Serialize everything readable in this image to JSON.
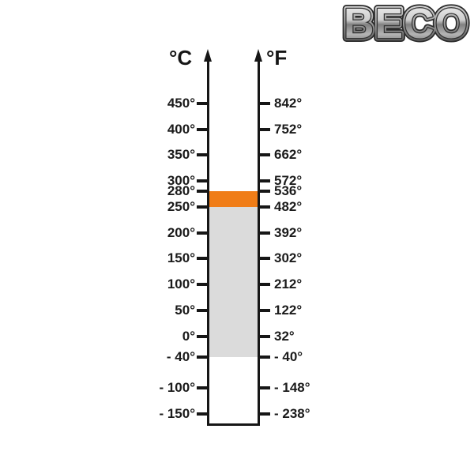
{
  "logo": {
    "text": "BECO"
  },
  "scale": {
    "celsius_header": "°C",
    "fahrenheit_header": "°F",
    "ticks": [
      {
        "value": 450,
        "c": "450°",
        "f": "842°"
      },
      {
        "value": 400,
        "c": "400°",
        "f": "752°"
      },
      {
        "value": 350,
        "c": "350°",
        "f": "662°"
      },
      {
        "value": 300,
        "c": "300°",
        "f": "572°"
      },
      {
        "value": 280,
        "c": "280°",
        "f": "536°"
      },
      {
        "value": 250,
        "c": "250°",
        "f": "482°"
      },
      {
        "value": 200,
        "c": "200°",
        "f": "392°"
      },
      {
        "value": 150,
        "c": "150°",
        "f": "302°"
      },
      {
        "value": 100,
        "c": "100°",
        "f": "212°"
      },
      {
        "value": 50,
        "c": "50°",
        "f": "122°"
      },
      {
        "value": 0,
        "c": "0°",
        "f": "32°"
      },
      {
        "value": -40,
        "c": "- 40°",
        "f": "- 40°"
      },
      {
        "value": -100,
        "c": "- 100°",
        "f": "- 148°"
      },
      {
        "value": -150,
        "c": "- 150°",
        "f": "- 238°"
      }
    ],
    "bands": [
      {
        "name": "peak-temperature-band",
        "from_c": 280,
        "to_c": 250,
        "color": "#F07D17"
      },
      {
        "name": "standard-temperature-band",
        "from_c": 250,
        "to_c": -40,
        "color": "#DBDBDB"
      }
    ]
  },
  "colors": {
    "axis": "#161616",
    "peak_orange": "#F07D17",
    "standard_gray": "#DBDBDB",
    "background": "#FFFFFF"
  },
  "chart_data": {
    "type": "table",
    "title": "Dual temperature scale °C / °F with highlighted operating ranges",
    "columns": [
      "°C",
      "°F"
    ],
    "rows": [
      [
        "450°",
        "842°"
      ],
      [
        "400°",
        "752°"
      ],
      [
        "350°",
        "662°"
      ],
      [
        "300°",
        "572°"
      ],
      [
        "280°",
        "536°"
      ],
      [
        "250°",
        "482°"
      ],
      [
        "200°",
        "392°"
      ],
      [
        "150°",
        "302°"
      ],
      [
        "100°",
        "212°"
      ],
      [
        "50°",
        "122°"
      ],
      [
        "0°",
        "32°"
      ],
      [
        "- 40°",
        "- 40°"
      ],
      [
        "- 100°",
        "- 148°"
      ],
      [
        "- 150°",
        "- 238°"
      ]
    ],
    "axis_range_celsius": [
      -150,
      450
    ],
    "annotations": [
      {
        "label": "orange band",
        "range_celsius": [
          250,
          280
        ],
        "color": "#F07D17"
      },
      {
        "label": "gray band",
        "range_celsius": [
          -40,
          250
        ],
        "color": "#DBDBDB"
      }
    ],
    "legend_position": "none",
    "grid": false
  }
}
